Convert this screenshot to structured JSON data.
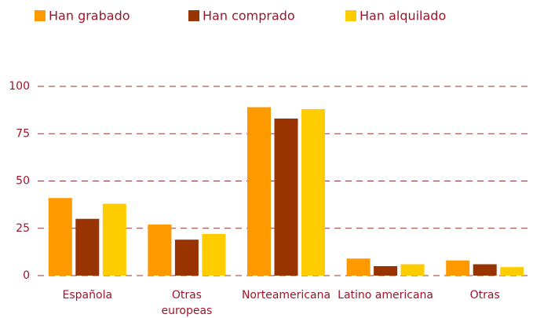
{
  "chart_data": {
    "type": "bar",
    "categories": [
      "Española",
      "Otras\neuropeas",
      "Norteamericana",
      "Latino americana",
      "Otras"
    ],
    "series": [
      {
        "name": "Han grabado",
        "color": "#ff9900",
        "values": [
          41,
          27,
          89,
          9,
          8
        ]
      },
      {
        "name": "Han comprado",
        "color": "#993300",
        "values": [
          30,
          19,
          83,
          5,
          6
        ]
      },
      {
        "name": "Han alquilado",
        "color": "#ffcc00",
        "values": [
          38,
          22,
          88,
          6,
          4.5
        ]
      }
    ],
    "ylim": [
      0,
      100
    ],
    "yticks": [
      0,
      25,
      50,
      75,
      100
    ],
    "grid": true,
    "legend": "top"
  }
}
